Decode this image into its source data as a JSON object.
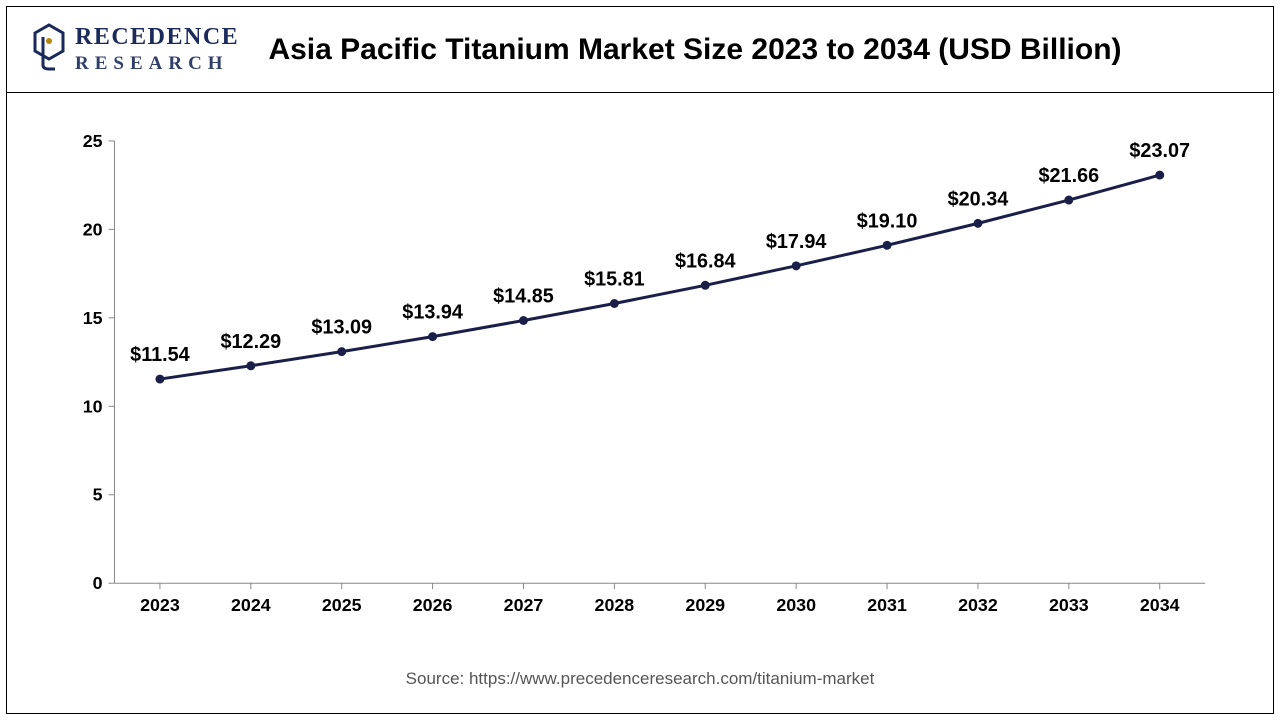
{
  "logo": {
    "line1": "RECEDENCE",
    "line2": "RESEARCH",
    "accent_color": "#1a2a5a"
  },
  "title": "Asia Pacific Titanium Market Size 2023 to 2034 (USD Billion)",
  "source": "Source: https://www.precedenceresearch.com/titanium-market",
  "chart": {
    "type": "line",
    "categories": [
      "2023",
      "2024",
      "2025",
      "2026",
      "2027",
      "2028",
      "2029",
      "2030",
      "2031",
      "2032",
      "2033",
      "2034"
    ],
    "values": [
      11.54,
      12.29,
      13.09,
      13.94,
      14.85,
      15.81,
      16.84,
      17.94,
      19.1,
      20.34,
      21.66,
      23.07
    ],
    "value_labels": [
      "$11.54",
      "$12.29",
      "$13.09",
      "$13.94",
      "$14.85",
      "$15.81",
      "$16.84",
      "$17.94",
      "$19.10",
      "$20.34",
      "$21.66",
      "$23.07"
    ],
    "ylim": [
      0,
      25
    ],
    "ytick_step": 5,
    "yticks": [
      0,
      5,
      10,
      15,
      20,
      25
    ],
    "line_color": "#1a1f4a",
    "line_width": 3,
    "marker_radius": 4.5,
    "marker_fill": "#1a1f4a",
    "background_color": "#ffffff",
    "axis_color": "#888888",
    "tick_length": 6,
    "label_fontsize": 20,
    "tick_fontsize": 18,
    "title_fontsize": 30,
    "data_label_offset_y": -18
  }
}
